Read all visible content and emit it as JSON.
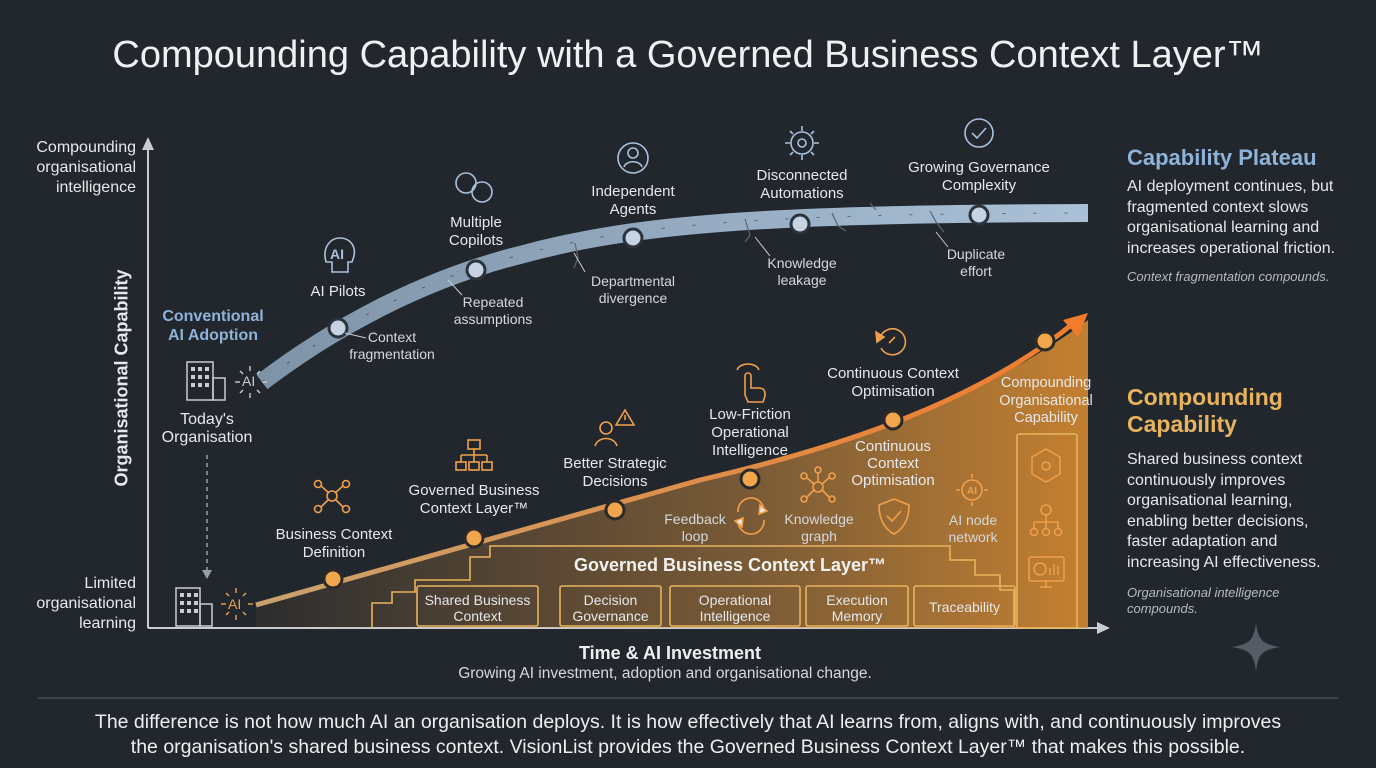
{
  "title": "Compounding Capability with a Governed Business Context Layer™",
  "axes": {
    "y_label": "Organisational Capability",
    "y_top": [
      "Compounding",
      "organisational",
      "intelligence"
    ],
    "y_bottom": [
      "Limited",
      "organisational",
      "learning"
    ],
    "x_label": "Time & AI Investment",
    "x_sub": "Growing AI investment, adoption and organisational change."
  },
  "conventional": {
    "label": [
      "Conventional",
      "AI Adoption"
    ],
    "org_label": [
      "Today's",
      "Organisation"
    ],
    "ai_badge": "AI",
    "milestones": [
      {
        "label": [
          "AI Pilots"
        ],
        "icon": "ai-head-icon"
      },
      {
        "label": [
          "Multiple",
          "Copilots"
        ],
        "icon": "ai-heads-icon"
      },
      {
        "label": [
          "Independent",
          "Agents"
        ],
        "icon": "agent-icon"
      },
      {
        "label": [
          "Disconnected",
          "Automations"
        ],
        "icon": "gear-icon"
      },
      {
        "label": [
          "Growing Governance",
          "Complexity"
        ],
        "icon": "governance-gear-icon"
      }
    ],
    "issues": [
      [
        "Context",
        "fragmentation"
      ],
      [
        "Repeated",
        "assumptions"
      ],
      [
        "Departmental",
        "divergence"
      ],
      [
        "Knowledge",
        "leakage"
      ],
      [
        "Duplicate",
        "effort"
      ]
    ]
  },
  "compounding": {
    "ai_badge": "AI",
    "milestones": [
      {
        "label": [
          "Business Context",
          "Definition"
        ],
        "icon": "network-icon"
      },
      {
        "label": [
          "Governed Business",
          "Context Layer™"
        ],
        "icon": "hierarchy-icon"
      },
      {
        "label": [
          "Better Strategic",
          "Decisions"
        ],
        "icon": "decision-warning-icon"
      },
      {
        "label": [
          "Low-Friction",
          "Operational",
          "Intelligence"
        ],
        "icon": "touch-icon"
      },
      {
        "label": [
          "Continuous Context",
          "Optimisation"
        ],
        "icon": "refresh-icon"
      },
      {
        "label": [
          "Compounding",
          "Organisational",
          "Capability"
        ],
        "icon": "arrow-icon"
      }
    ],
    "continuous_label": [
      "Continuous",
      "Context",
      "Optimisation"
    ],
    "features": [
      {
        "label": [
          "Feedback",
          "loop"
        ],
        "icon": "feedback-loop-icon"
      },
      {
        "label": [
          "Knowledge",
          "graph"
        ],
        "icon": "knowledge-graph-icon"
      },
      {
        "label": [
          ""
        ],
        "icon": "shield-check-icon"
      },
      {
        "label": [
          "AI node",
          "network"
        ],
        "icon": "ai-node-icon"
      }
    ],
    "layer_title": "Governed Business Context Layer™",
    "blocks": [
      [
        "Shared Business",
        "Context"
      ],
      [
        "Decision",
        "Governance"
      ],
      [
        "Operational",
        "Intelligence"
      ],
      [
        "Execution",
        "Memory"
      ],
      [
        "Traceability"
      ]
    ]
  },
  "panels": {
    "plateau": {
      "heading": "Capability Plateau",
      "body": [
        "AI deployment continues, but",
        "fragmented context slows",
        "organisational learning and",
        "increases operational friction."
      ],
      "note": "Context fragmentation compounds."
    },
    "compounding": {
      "heading": [
        "Compounding",
        "Capability"
      ],
      "body": [
        "Shared business context",
        "continuously improves",
        "organisational learning,",
        "enabling better decisions,",
        "faster adaptation and",
        "increasing AI effectiveness."
      ],
      "note": [
        "Organisational intelligence",
        "compounds."
      ]
    }
  },
  "footer": [
    "The difference is not how much AI an organisation deploys. It is how effectively that AI learns from, aligns with, and continuously improves",
    "the organisation's shared business context. VisionList provides the Governed Business Context Layer™ that makes this possible."
  ],
  "colors": {
    "background": "#22272d",
    "plateau_blue": "#a9c1dc",
    "orange": "#f0a04b",
    "gold": "#e7b45d"
  }
}
